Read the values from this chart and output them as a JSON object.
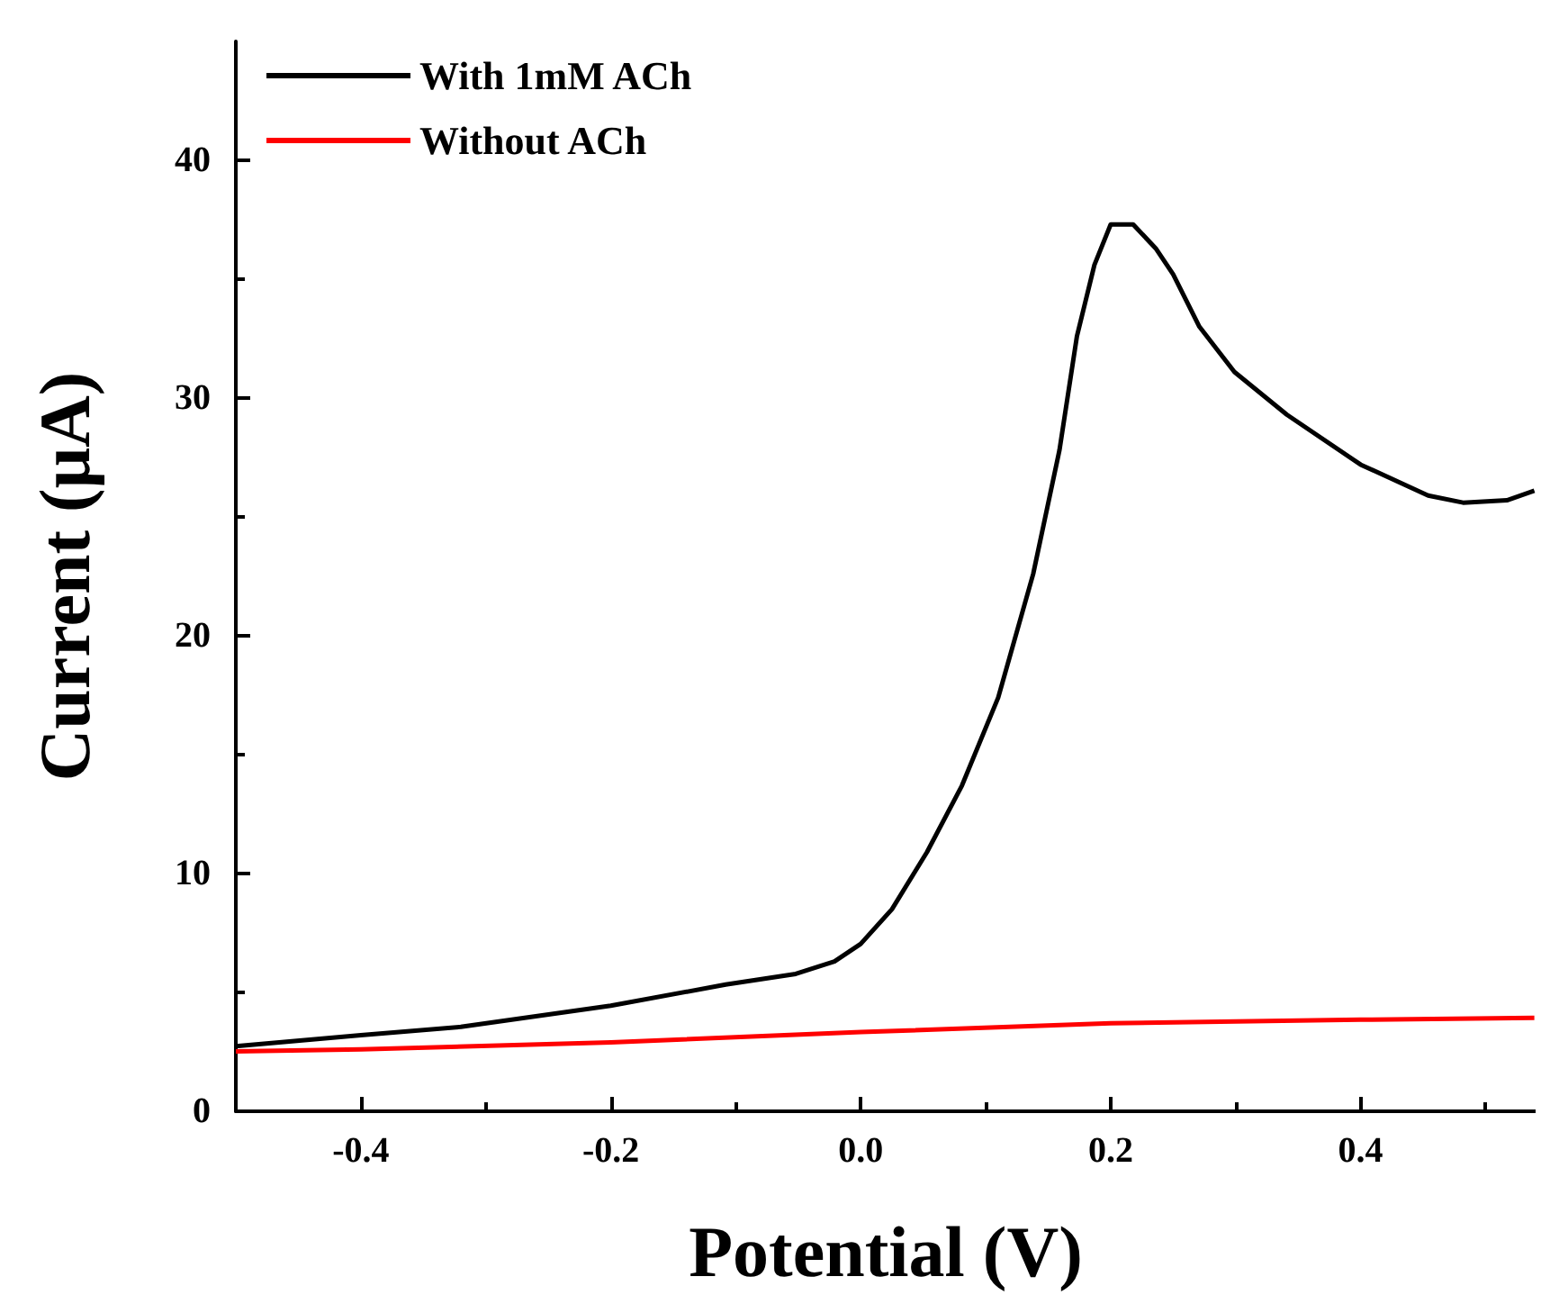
{
  "chart_data": {
    "type": "line",
    "xlabel": "Potential (V)",
    "ylabel": "Current (μA)",
    "xlim": [
      -0.5,
      0.54
    ],
    "xticks": [
      -0.4,
      -0.2,
      {
        "value": 0,
        "label": "0.0"
      },
      0.2,
      0.4
    ],
    "ylim": [
      0,
      45
    ],
    "yticks": [
      0,
      10,
      20,
      30,
      40
    ],
    "grid": false,
    "legend": "top left",
    "marker": "none",
    "line_style": "solid",
    "series": [
      {
        "name": "With 1mM ACh",
        "color": "#000000",
        "x": [
          -0.5,
          -0.4,
          -0.32,
          -0.2,
          -0.108,
          -0.052,
          -0.021,
          0.0,
          0.025,
          0.053,
          0.081,
          0.11,
          0.138,
          0.159,
          0.173,
          0.187,
          0.2,
          0.218,
          0.236,
          0.25,
          0.271,
          0.299,
          0.341,
          0.4,
          0.454,
          0.482,
          0.517,
          0.539
        ],
        "values": [
          2.74,
          3.2,
          3.55,
          4.44,
          5.33,
          5.78,
          6.3,
          7.04,
          8.5,
          10.9,
          13.7,
          17.4,
          22.6,
          27.8,
          32.6,
          35.6,
          37.3,
          37.3,
          36.3,
          35.2,
          33.0,
          31.1,
          29.3,
          27.2,
          25.9,
          25.6,
          25.7,
          26.1
        ]
      },
      {
        "name": "Without ACh",
        "color": "#ff0000",
        "x": [
          -0.5,
          -0.4,
          -0.2,
          0.0,
          0.2,
          0.4,
          0.539
        ],
        "values": [
          2.52,
          2.6,
          2.9,
          3.33,
          3.7,
          3.85,
          3.93
        ]
      }
    ]
  }
}
